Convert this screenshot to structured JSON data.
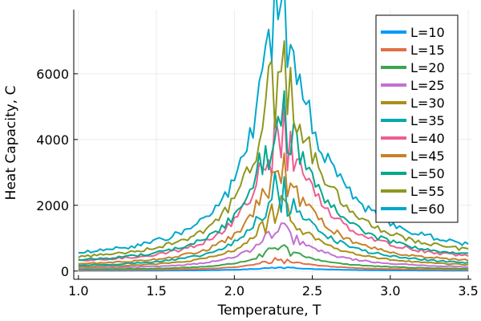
{
  "chart_data": {
    "type": "line",
    "title": "",
    "xlabel": "Temperature, T",
    "ylabel": "Heat Capacity, C",
    "xlim": [
      0.97,
      3.52
    ],
    "ylim": [
      -250,
      7950
    ],
    "x_ticks": [
      1.0,
      1.5,
      2.0,
      2.5,
      3.0,
      3.5
    ],
    "x_tick_labels": [
      "1.0",
      "1.5",
      "2.0",
      "2.5",
      "3.0",
      "3.5"
    ],
    "y_ticks": [
      0,
      2000,
      4000,
      6000
    ],
    "y_tick_labels": [
      "0",
      "2000",
      "4000",
      "6000"
    ],
    "grid": true,
    "legend_position": "top-right",
    "x_range": [
      1.0,
      3.5
    ],
    "x_step": 0.02,
    "series": [
      {
        "name": "L=10",
        "color": "#009AFA",
        "peak": 110
      },
      {
        "name": "L=15",
        "color": "#E26F46",
        "peak": 330
      },
      {
        "name": "L=20",
        "color": "#3EA44E",
        "peak": 650
      },
      {
        "name": "L=25",
        "color": "#C271D2",
        "peak": 1200
      },
      {
        "name": "L=30",
        "color": "#AC8E18",
        "peak": 1800
      },
      {
        "name": "L=35",
        "color": "#00A9AD",
        "peak": 2400
      },
      {
        "name": "L=40",
        "color": "#ED5E93",
        "peak": 4250
      },
      {
        "name": "L=45",
        "color": "#C68225",
        "peak": 3050
      },
      {
        "name": "L=50",
        "color": "#00A98D",
        "peak": 4700
      },
      {
        "name": "L=55",
        "color": "#8E971E",
        "peak": 6050
      },
      {
        "name": "L=60",
        "color": "#00A8CB",
        "peak": 7650
      }
    ]
  }
}
